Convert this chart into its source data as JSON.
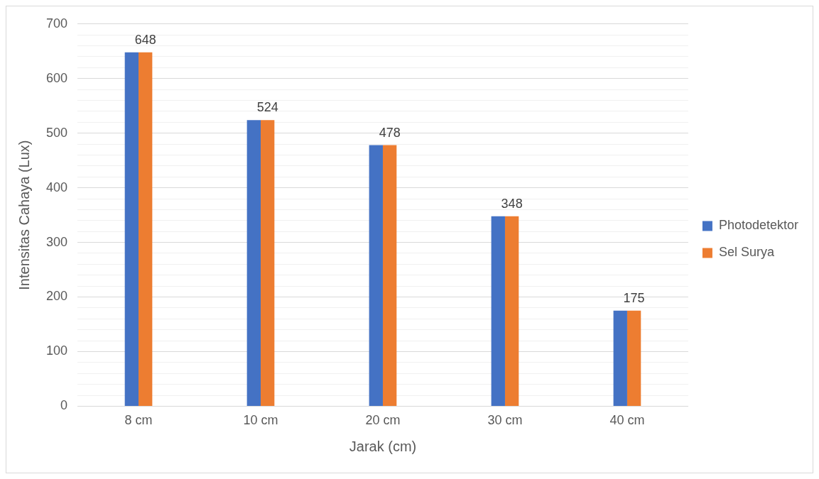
{
  "chart_data": {
    "type": "bar",
    "xlabel": "Jarak (cm)",
    "ylabel": "Intensitas Cahaya (Lux)",
    "categories": [
      "8 cm",
      "10 cm",
      "20 cm",
      "30 cm",
      "40 cm"
    ],
    "series": [
      {
        "name": "Photodetektor",
        "color": "#4472c4",
        "values": [
          648,
          524,
          478,
          348,
          175
        ]
      },
      {
        "name": "Sel Surya",
        "color": "#ed7d31",
        "values": [
          648,
          524,
          478,
          348,
          175
        ],
        "value_labels": [
          "648",
          "524",
          "478",
          "348",
          "175"
        ]
      }
    ],
    "ylim": [
      0,
      700
    ],
    "yticks": [
      0,
      {
        "value": 20,
        "label": null
      },
      {
        "value": 40,
        "label": null
      },
      {
        "value": 60,
        "label": null
      },
      {
        "value": 80,
        "label": null
      },
      100,
      {
        "value": 120,
        "label": null
      },
      {
        "value": 140,
        "label": null
      },
      {
        "value": 160,
        "label": null
      },
      {
        "value": 180,
        "label": null
      },
      200,
      {
        "value": 220,
        "label": null
      },
      {
        "value": 240,
        "label": null
      },
      {
        "value": 260,
        "label": null
      },
      {
        "value": 280,
        "label": null
      },
      300,
      {
        "value": 320,
        "label": null
      },
      {
        "value": 340,
        "label": null
      },
      {
        "value": 360,
        "label": null
      },
      {
        "value": 380,
        "label": null
      },
      400,
      {
        "value": 420,
        "label": null
      },
      {
        "value": 440,
        "label": null
      },
      {
        "value": 460,
        "label": null
      },
      {
        "value": 480,
        "label": null
      },
      500,
      {
        "value": 520,
        "label": null
      },
      {
        "value": 540,
        "label": null
      },
      {
        "value": 560,
        "label": null
      },
      {
        "value": 580,
        "label": null
      },
      600,
      {
        "value": 620,
        "label": null
      },
      {
        "value": 640,
        "label": null
      },
      {
        "value": 660,
        "label": null
      },
      {
        "value": 680,
        "label": null
      },
      700
    ],
    "grid": "y",
    "legend": "right"
  }
}
